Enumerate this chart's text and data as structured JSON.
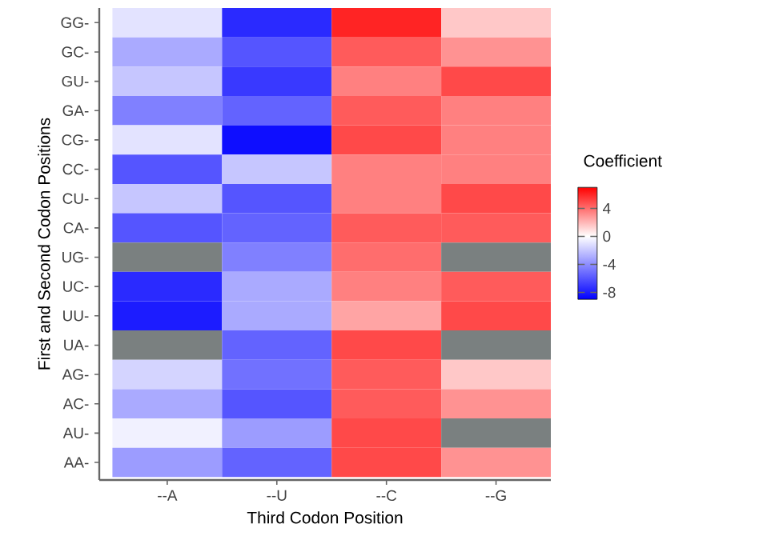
{
  "chart_data": {
    "type": "heatmap",
    "xlabel": "Third Codon Position",
    "ylabel": "First and Second Codon Positions",
    "clabel": "Coefficient",
    "categories": [
      "--A",
      "--U",
      "--C",
      "--G"
    ],
    "y_categories": [
      "GG-",
      "GC-",
      "GU-",
      "GA-",
      "CG-",
      "CC-",
      "CU-",
      "CA-",
      "UG-",
      "UC-",
      "UU-",
      "UA-",
      "AG-",
      "AC-",
      "AU-",
      "AA-"
    ],
    "cells": [
      [
        -1,
        -7.5,
        6,
        1.5
      ],
      [
        -3,
        -6,
        4.5,
        3
      ],
      [
        -2,
        -7,
        3.5,
        5
      ],
      [
        -4.5,
        -5.5,
        4.5,
        3.5
      ],
      [
        -1,
        -8.5,
        5,
        3.5
      ],
      [
        -6,
        -2,
        3.5,
        3.5
      ],
      [
        -2,
        -6,
        3.5,
        5
      ],
      [
        -6,
        -5.5,
        4.5,
        4.5
      ],
      [
        null,
        -4.5,
        4,
        null
      ],
      [
        -7.5,
        -3,
        3.5,
        4.5
      ],
      [
        -8,
        -3,
        2.5,
        5
      ],
      [
        null,
        -5.5,
        5,
        null
      ],
      [
        -1.5,
        -5,
        4.5,
        1.5
      ],
      [
        -3,
        -6,
        4.5,
        3
      ],
      [
        -0.5,
        -3.5,
        5,
        null
      ],
      [
        -3.5,
        -5.5,
        5,
        3
      ]
    ],
    "clim": [
      -9,
      7
    ],
    "cticks": [
      -8,
      -4,
      0,
      4
    ]
  }
}
